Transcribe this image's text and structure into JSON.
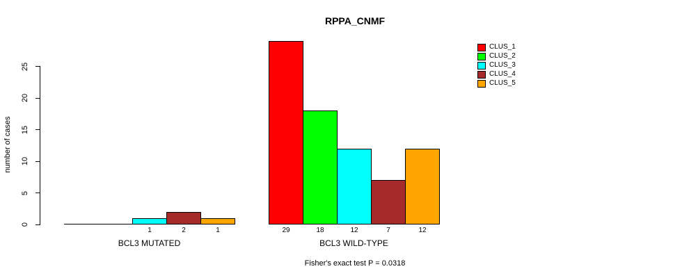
{
  "chart_data": {
    "type": "bar",
    "title": "RPPA_CNMF",
    "ylabel": "number of cases",
    "footer": "Fisher's exact test P = 0.0318",
    "ylim": [
      0,
      25
    ],
    "yticks": [
      0,
      5,
      10,
      15,
      20,
      25
    ],
    "grid": false,
    "legend_position": "top-right",
    "legend": [
      {
        "name": "CLUS_1",
        "color": "#FF0000"
      },
      {
        "name": "CLUS_2",
        "color": "#00FF00"
      },
      {
        "name": "CLUS_3",
        "color": "#00FFFF"
      },
      {
        "name": "CLUS_4",
        "color": "#A52A2A"
      },
      {
        "name": "CLUS_5",
        "color": "#FFA500"
      }
    ],
    "groups": [
      {
        "label": "BCL3 MUTATED",
        "values": [
          0,
          0,
          1,
          2,
          1
        ],
        "bar_labels": [
          "",
          "",
          "1",
          "2",
          "1"
        ]
      },
      {
        "label": "BCL3 WILD-TYPE",
        "values": [
          29,
          18,
          12,
          7,
          12
        ],
        "bar_labels": [
          "29",
          "18",
          "12",
          "7",
          "12"
        ]
      }
    ]
  }
}
